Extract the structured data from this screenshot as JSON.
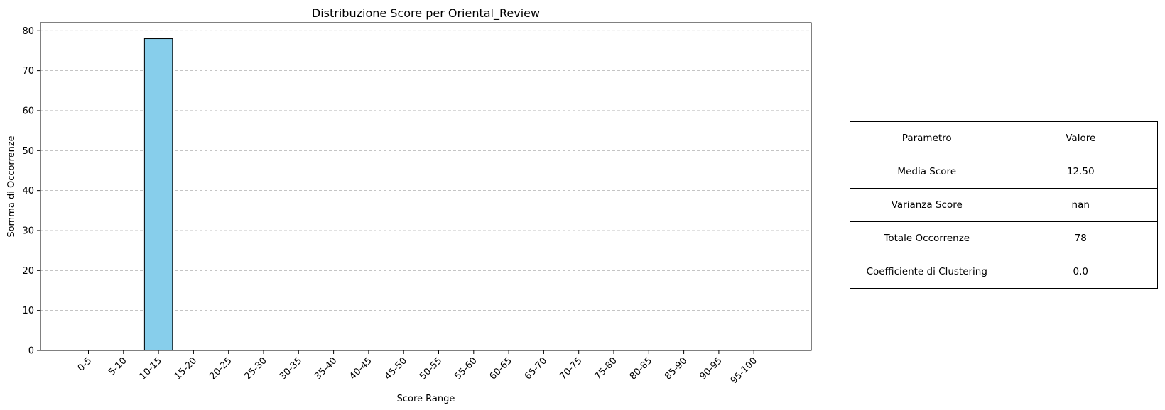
{
  "chart_data": {
    "type": "bar",
    "title": "Distribuzione Score per Oriental_Review",
    "xlabel": "Score Range",
    "ylabel": "Somma di Occorrenze",
    "categories": [
      "0-5",
      "5-10",
      "10-15",
      "15-20",
      "20-25",
      "25-30",
      "30-35",
      "35-40",
      "40-45",
      "45-50",
      "50-55",
      "55-60",
      "60-65",
      "65-70",
      "70-75",
      "75-80",
      "80-85",
      "85-90",
      "90-95",
      "95-100"
    ],
    "values": [
      0,
      0,
      78,
      0,
      0,
      0,
      0,
      0,
      0,
      0,
      0,
      0,
      0,
      0,
      0,
      0,
      0,
      0,
      0,
      0
    ],
    "ylim": [
      0,
      82
    ],
    "yticks": [
      0,
      10,
      20,
      30,
      40,
      50,
      60,
      70,
      80
    ],
    "grid": "y-dashed",
    "bar_color": "#87ceeb",
    "edge_color": "#000000"
  },
  "table": {
    "header": [
      "Parametro",
      "Valore"
    ],
    "rows": [
      [
        "Media Score",
        "12.50"
      ],
      [
        "Varianza Score",
        "nan"
      ],
      [
        "Totale Occorrenze",
        "78"
      ],
      [
        "Coefficiente di Clustering",
        "0.0"
      ]
    ]
  }
}
